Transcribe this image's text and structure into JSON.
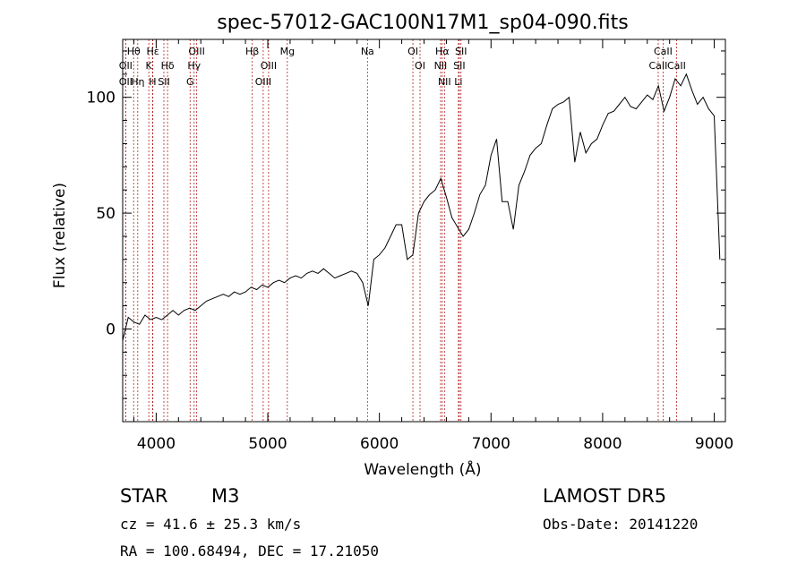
{
  "chart_data": {
    "type": "line",
    "title": "spec-57012-GAC100N17M1_sp04-090.fits",
    "xlabel": "Wavelength (Å)",
    "ylabel": "Flux (relative)",
    "xlim": [
      3700,
      9100
    ],
    "ylim": [
      -40,
      125
    ],
    "x_ticks": [
      4000,
      5000,
      6000,
      7000,
      8000,
      9000
    ],
    "y_ticks": [
      0,
      50,
      100
    ],
    "grid": false,
    "series": [
      {
        "color": "#000000",
        "x": [
          3700,
          3750,
          3800,
          3850,
          3900,
          3950,
          4000,
          4050,
          4100,
          4150,
          4200,
          4250,
          4300,
          4350,
          4400,
          4450,
          4500,
          4550,
          4600,
          4650,
          4700,
          4750,
          4800,
          4850,
          4900,
          4950,
          5000,
          5050,
          5100,
          5150,
          5200,
          5250,
          5300,
          5350,
          5400,
          5450,
          5500,
          5550,
          5600,
          5650,
          5700,
          5750,
          5800,
          5850,
          5900,
          5950,
          6000,
          6050,
          6100,
          6150,
          6200,
          6250,
          6300,
          6350,
          6400,
          6450,
          6500,
          6550,
          6600,
          6650,
          6700,
          6750,
          6800,
          6850,
          6900,
          6950,
          7000,
          7050,
          7100,
          7150,
          7200,
          7250,
          7300,
          7350,
          7400,
          7450,
          7500,
          7550,
          7600,
          7650,
          7700,
          7750,
          7800,
          7850,
          7900,
          7950,
          8000,
          8050,
          8100,
          8150,
          8200,
          8250,
          8300,
          8350,
          8400,
          8450,
          8500,
          8550,
          8600,
          8650,
          8700,
          8750,
          8800,
          8850,
          8900,
          8950,
          9000,
          9050
        ],
        "y": [
          -5,
          5,
          3,
          2,
          6,
          4,
          5,
          4,
          6,
          8,
          6,
          8,
          9,
          8,
          10,
          12,
          13,
          14,
          15,
          14,
          16,
          15,
          16,
          18,
          17,
          19,
          18,
          20,
          21,
          20,
          22,
          23,
          22,
          24,
          25,
          24,
          26,
          24,
          22,
          23,
          24,
          25,
          24,
          20,
          10,
          30,
          32,
          35,
          40,
          45,
          45,
          30,
          32,
          50,
          55,
          58,
          60,
          65,
          57,
          48,
          44,
          40,
          43,
          50,
          58,
          62,
          75,
          82,
          55,
          55,
          43,
          62,
          68,
          75,
          78,
          80,
          88,
          95,
          97,
          98,
          100,
          72,
          85,
          76,
          80,
          82,
          88,
          93,
          94,
          97,
          100,
          96,
          95,
          98,
          101,
          99,
          105,
          94,
          100,
          108,
          105,
          110,
          103,
          97,
          100,
          95,
          92,
          30
        ]
      }
    ],
    "lines": [
      {
        "label": "Hθ",
        "x": 3798
      },
      {
        "label": "OII",
        "x": 3727
      },
      {
        "label": "OII",
        "x": 3727
      },
      {
        "label": "Hη",
        "x": 3835
      },
      {
        "label": "K",
        "x": 3934
      },
      {
        "label": "Hε",
        "x": 3970
      },
      {
        "label": "H",
        "x": 3968
      },
      {
        "label": "SII",
        "x": 4069
      },
      {
        "label": "Hδ",
        "x": 4102
      },
      {
        "label": "OIII",
        "x": 4363
      },
      {
        "label": "Hγ",
        "x": 4340
      },
      {
        "label": "G",
        "x": 4304
      },
      {
        "label": "Hβ",
        "x": 4861
      },
      {
        "label": "OIII",
        "x": 5007
      },
      {
        "label": "OIII",
        "x": 4959
      },
      {
        "label": "Mg",
        "x": 5175
      },
      {
        "label": "Na",
        "x": 5893
      },
      {
        "label": "OI",
        "x": 6300
      },
      {
        "label": "OI",
        "x": 6364
      },
      {
        "label": "Hα",
        "x": 6563
      },
      {
        "label": "NII",
        "x": 6548
      },
      {
        "label": "NII",
        "x": 6583
      },
      {
        "label": "SII",
        "x": 6716
      },
      {
        "label": "Li",
        "x": 6708
      },
      {
        "label": "SII",
        "x": 6731
      },
      {
        "label": "CaII",
        "x": 8542
      },
      {
        "label": "CaII",
        "x": 8498
      },
      {
        "label": "CaII",
        "x": 8662
      }
    ]
  },
  "info": {
    "class_label": "STAR",
    "subclass": "M3",
    "survey": "LAMOST DR5",
    "cz": "cz = 41.6 ± 25.3 km/s",
    "obs_date": "Obs-Date: 20141220",
    "coords": "RA = 100.68494, DEC =  17.21050"
  },
  "colors": {
    "line_marker": "#b22222",
    "spectrum": "#000000"
  }
}
